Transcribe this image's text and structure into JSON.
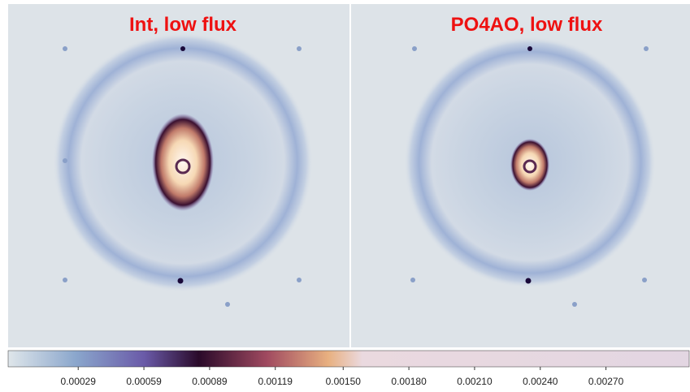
{
  "panels": [
    {
      "title": "Int, low flux"
    },
    {
      "title": "PO4AO, low flux"
    }
  ],
  "colorbar": {
    "lim": [
      -3e-05,
      0.00308
    ],
    "ticks": [
      {
        "value": 0.00029,
        "label": "0.00029"
      },
      {
        "value": 0.00059,
        "label": "0.00059"
      },
      {
        "value": 0.00089,
        "label": "0.00089"
      },
      {
        "value": 0.00119,
        "label": "0.00119"
      },
      {
        "value": 0.0015,
        "label": "0.00150"
      },
      {
        "value": 0.0018,
        "label": "0.00180"
      },
      {
        "value": 0.0021,
        "label": "0.00210"
      },
      {
        "value": 0.0024,
        "label": "0.00240"
      },
      {
        "value": 0.0027,
        "label": "0.00270"
      }
    ]
  }
}
